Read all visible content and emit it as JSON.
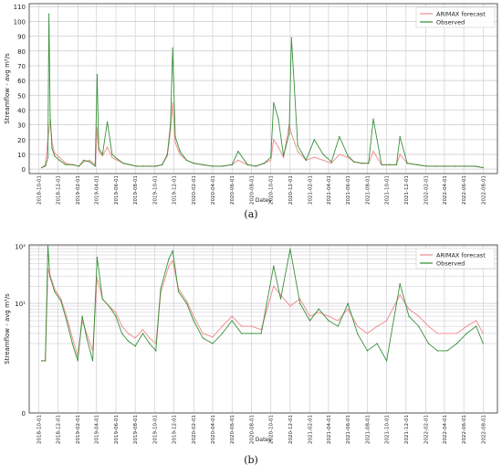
{
  "colors": {
    "forecast": "#f08a8a",
    "forecast_band": "#f7c6cc",
    "observed": "#2e8b2e",
    "grid": "#c8c8d0",
    "axis": "#333333"
  },
  "chart_data": [
    {
      "type": "line",
      "panel_label": "(a)",
      "xlabel": "Dates",
      "ylabel": "Streamflow - avg m³/s",
      "yscale": "linear",
      "ylim": [
        -3,
        112
      ],
      "yticks": [
        0,
        10,
        20,
        30,
        40,
        50,
        60,
        70,
        80,
        90,
        100,
        110
      ],
      "ytick_labels": [
        "0",
        "10",
        "20",
        "30",
        "40",
        "50",
        "60",
        "70",
        "80",
        "90",
        "100",
        "110"
      ],
      "xlim": [
        "2018-09-01",
        "2022-09-15"
      ],
      "xtick_labels": [
        "2018-10-01",
        "2018-12-01",
        "2019-02-01",
        "2019-04-01",
        "2019-06-01",
        "2019-08-01",
        "2019-10-01",
        "2019-12-01",
        "2020-02-01",
        "2020-04-01",
        "2020-06-01",
        "2020-08-01",
        "2020-10-01",
        "2020-12-01",
        "2021-02-01",
        "2021-04-01",
        "2021-06-01",
        "2021-08-01",
        "2021-10-01",
        "2021-12-01",
        "2022-02-01",
        "2022-04-01",
        "2022-06-01",
        "2022-08-01"
      ],
      "grid": true,
      "legend_position": "top-right",
      "series": [
        {
          "name": "ARIMAX forecast",
          "color": "#f08a8a",
          "x": [
            "2018-10-10",
            "2018-10-22",
            "2018-10-30",
            "2018-11-02",
            "2018-11-06",
            "2018-11-12",
            "2018-11-20",
            "2018-12-05",
            "2018-12-25",
            "2019-01-15",
            "2019-02-05",
            "2019-02-20",
            "2019-03-10",
            "2019-03-28",
            "2019-04-03",
            "2019-04-08",
            "2019-04-20",
            "2019-05-05",
            "2019-05-20",
            "2019-06-05",
            "2019-06-25",
            "2019-07-15",
            "2019-08-05",
            "2019-08-25",
            "2019-09-15",
            "2019-10-05",
            "2019-10-25",
            "2019-11-10",
            "2019-11-20",
            "2019-11-27",
            "2019-12-05",
            "2019-12-20",
            "2020-01-10",
            "2020-02-01",
            "2020-03-01",
            "2020-04-01",
            "2020-05-01",
            "2020-06-01",
            "2020-06-20",
            "2020-07-20",
            "2020-08-15",
            "2020-09-10",
            "2020-10-01",
            "2020-10-10",
            "2020-10-25",
            "2020-11-10",
            "2020-11-28",
            "2020-12-05",
            "2020-12-25",
            "2021-01-20",
            "2021-02-15",
            "2021-03-15",
            "2021-04-10",
            "2021-05-05",
            "2021-06-01",
            "2021-06-20",
            "2021-07-15",
            "2021-08-05",
            "2021-08-20",
            "2021-09-15",
            "2021-10-10",
            "2021-11-01",
            "2021-11-12",
            "2021-12-05",
            "2022-01-05",
            "2022-02-05",
            "2022-03-05",
            "2022-04-05",
            "2022-05-05",
            "2022-06-05",
            "2022-07-05",
            "2022-08-01"
          ],
          "y": [
            1,
            3,
            20,
            26,
            34,
            18,
            11,
            8,
            4,
            3,
            2,
            5,
            6,
            3,
            28,
            12,
            9,
            15,
            8,
            6,
            4,
            3,
            2,
            2,
            2,
            2,
            3,
            9,
            26,
            45,
            18,
            10,
            6,
            4,
            3,
            2,
            2,
            3,
            6,
            3,
            2,
            4,
            6,
            20,
            15,
            8,
            30,
            24,
            12,
            6,
            8,
            6,
            4,
            10,
            8,
            5,
            4,
            4,
            12,
            3,
            3,
            3,
            10,
            4,
            3,
            2,
            2,
            2,
            2,
            2,
            2,
            1
          ]
        },
        {
          "name": "Observed",
          "color": "#2e8b2e",
          "x": [
            "2018-10-10",
            "2018-10-22",
            "2018-10-30",
            "2018-11-02",
            "2018-11-06",
            "2018-11-12",
            "2018-11-20",
            "2018-12-05",
            "2018-12-25",
            "2019-01-15",
            "2019-02-05",
            "2019-02-20",
            "2019-03-10",
            "2019-03-28",
            "2019-04-03",
            "2019-04-08",
            "2019-04-20",
            "2019-05-05",
            "2019-05-20",
            "2019-06-05",
            "2019-06-25",
            "2019-07-15",
            "2019-08-05",
            "2019-08-25",
            "2019-09-15",
            "2019-10-05",
            "2019-10-25",
            "2019-11-10",
            "2019-11-20",
            "2019-11-27",
            "2019-12-05",
            "2019-12-20",
            "2020-01-10",
            "2020-02-01",
            "2020-03-01",
            "2020-04-01",
            "2020-05-01",
            "2020-06-01",
            "2020-06-20",
            "2020-07-20",
            "2020-08-15",
            "2020-09-10",
            "2020-10-01",
            "2020-10-10",
            "2020-10-25",
            "2020-11-10",
            "2020-11-28",
            "2020-12-05",
            "2020-12-25",
            "2021-01-20",
            "2021-02-15",
            "2021-03-15",
            "2021-04-10",
            "2021-05-05",
            "2021-06-01",
            "2021-06-20",
            "2021-07-15",
            "2021-08-05",
            "2021-08-20",
            "2021-09-15",
            "2021-10-10",
            "2021-11-01",
            "2021-11-12",
            "2021-12-05",
            "2022-01-05",
            "2022-02-05",
            "2022-03-05",
            "2022-04-05",
            "2022-05-05",
            "2022-06-05",
            "2022-07-05",
            "2022-08-01"
          ],
          "y": [
            1,
            2,
            8,
            105,
            36,
            14,
            9,
            6,
            3,
            3,
            2,
            6,
            5,
            2,
            64,
            14,
            10,
            32,
            10,
            7,
            4,
            3,
            2,
            2,
            2,
            2,
            3,
            10,
            30,
            82,
            22,
            12,
            6,
            4,
            3,
            2,
            2,
            3,
            12,
            3,
            2,
            4,
            8,
            45,
            34,
            9,
            24,
            89,
            16,
            6,
            20,
            10,
            5,
            22,
            9,
            5,
            4,
            4,
            34,
            3,
            3,
            3,
            22,
            4,
            3,
            2,
            2,
            2,
            2,
            2,
            2,
            1
          ]
        }
      ]
    },
    {
      "type": "line",
      "panel_label": "(b)",
      "xlabel": "Dates",
      "ylabel": "Streamflow - avg m³/s",
      "yscale": "log",
      "ylim": [
        0,
        105
      ],
      "ytick_labels": [
        "10²",
        "10¹",
        "0"
      ],
      "yticks": [
        100,
        10,
        0
      ],
      "xlim": [
        "2018-09-01",
        "2022-09-15"
      ],
      "xtick_labels": [
        "2018-10-01",
        "2018-12-01",
        "2019-02-01",
        "2019-04-01",
        "2019-06-01",
        "2019-08-01",
        "2019-10-01",
        "2019-12-01",
        "2020-02-01",
        "2020-04-01",
        "2020-06-01",
        "2020-08-01",
        "2020-10-01",
        "2020-12-01",
        "2021-02-01",
        "2021-04-01",
        "2021-06-01",
        "2021-08-01",
        "2021-10-01",
        "2021-12-01",
        "2022-02-01",
        "2022-04-01",
        "2022-06-01",
        "2022-08-01"
      ],
      "grid": true,
      "legend_position": "top-right",
      "series": [
        {
          "name": "ARIMAX forecast",
          "color": "#f08a8a",
          "x": [
            "2018-10-10",
            "2018-10-22",
            "2018-10-30",
            "2018-11-05",
            "2018-11-20",
            "2018-12-10",
            "2018-12-28",
            "2019-01-15",
            "2019-02-01",
            "2019-02-15",
            "2019-03-01",
            "2019-03-20",
            "2019-04-03",
            "2019-04-20",
            "2019-05-10",
            "2019-06-01",
            "2019-06-20",
            "2019-07-10",
            "2019-08-01",
            "2019-08-25",
            "2019-09-15",
            "2019-10-05",
            "2019-10-20",
            "2019-11-15",
            "2019-11-27",
            "2019-12-15",
            "2020-01-10",
            "2020-02-01",
            "2020-03-01",
            "2020-04-01",
            "2020-05-01",
            "2020-06-01",
            "2020-07-01",
            "2020-08-01",
            "2020-09-01",
            "2020-10-10",
            "2020-11-01",
            "2020-12-01",
            "2021-01-01",
            "2021-02-01",
            "2021-03-01",
            "2021-04-01",
            "2021-05-01",
            "2021-06-01",
            "2021-07-01",
            "2021-08-01",
            "2021-09-01",
            "2021-10-01",
            "2021-11-12",
            "2021-12-10",
            "2022-01-10",
            "2022-02-10",
            "2022-03-10",
            "2022-04-10",
            "2022-05-10",
            "2022-06-10",
            "2022-07-10",
            "2022-08-01"
          ],
          "y": [
            1,
            1,
            40,
            32,
            18,
            12,
            6,
            2.5,
            1.2,
            5,
            3,
            1.5,
            28,
            12,
            9,
            7,
            4,
            3,
            2.5,
            3.5,
            2.5,
            2,
            15,
            45,
            55,
            18,
            11,
            6,
            3,
            2.6,
            4,
            6,
            4,
            4,
            3.5,
            20,
            14,
            9,
            12,
            6,
            7,
            6,
            5,
            8,
            4,
            3,
            4,
            5,
            14,
            8,
            6,
            4,
            3,
            3,
            3,
            4,
            5,
            3
          ]
        },
        {
          "name": "Observed",
          "color": "#2e8b2e",
          "x": [
            "2018-10-10",
            "2018-10-22",
            "2018-10-30",
            "2018-11-05",
            "2018-11-20",
            "2018-12-10",
            "2018-12-28",
            "2019-01-15",
            "2019-02-01",
            "2019-02-15",
            "2019-03-01",
            "2019-03-20",
            "2019-04-03",
            "2019-04-20",
            "2019-05-10",
            "2019-06-01",
            "2019-06-20",
            "2019-07-10",
            "2019-08-01",
            "2019-08-25",
            "2019-09-15",
            "2019-10-05",
            "2019-10-20",
            "2019-11-15",
            "2019-11-27",
            "2019-12-15",
            "2020-01-10",
            "2020-02-01",
            "2020-03-01",
            "2020-04-01",
            "2020-05-01",
            "2020-06-01",
            "2020-07-01",
            "2020-08-01",
            "2020-09-01",
            "2020-10-10",
            "2020-11-01",
            "2020-12-01",
            "2021-01-01",
            "2021-02-01",
            "2021-03-01",
            "2021-04-01",
            "2021-05-01",
            "2021-06-01",
            "2021-07-01",
            "2021-08-01",
            "2021-09-01",
            "2021-10-01",
            "2021-11-12",
            "2021-12-10",
            "2022-01-10",
            "2022-02-10",
            "2022-03-10",
            "2022-04-10",
            "2022-05-10",
            "2022-06-10",
            "2022-07-10",
            "2022-08-01"
          ],
          "y": [
            1,
            1,
            100,
            30,
            16,
            11,
            5,
            2,
            1,
            6,
            2.5,
            1,
            64,
            12,
            9,
            6,
            3,
            2.2,
            1.8,
            3,
            2,
            1.5,
            18,
            60,
            82,
            16,
            10,
            5,
            2.5,
            2,
            3,
            5,
            3,
            3,
            3,
            45,
            12,
            89,
            10,
            5,
            8,
            5,
            4,
            10,
            3,
            1.5,
            2,
            1,
            22,
            6,
            4,
            2,
            1.5,
            1.5,
            2,
            3,
            4,
            2
          ]
        }
      ]
    }
  ]
}
